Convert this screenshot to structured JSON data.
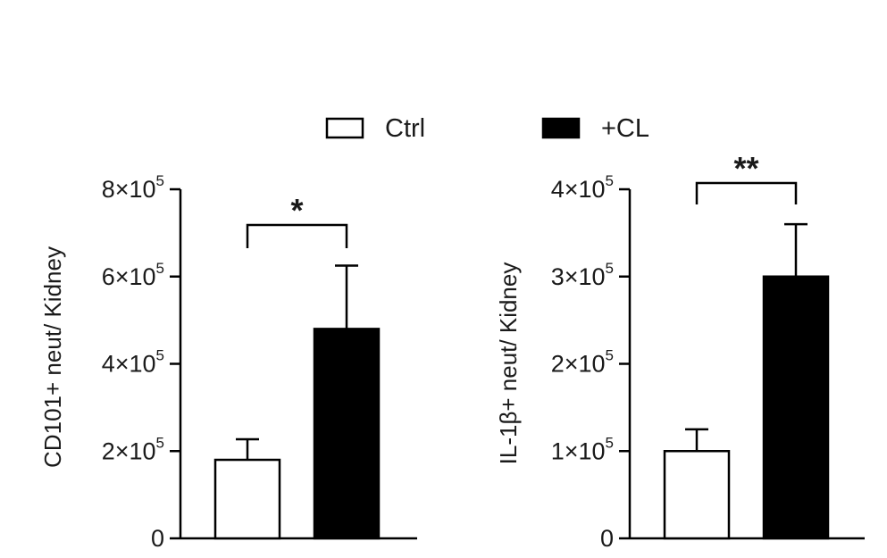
{
  "legend": {
    "items": [
      {
        "label": "Ctrl",
        "fill": "#ffffff"
      },
      {
        "label": "+CL",
        "fill": "#000000"
      }
    ]
  },
  "chart_data": [
    {
      "type": "bar",
      "categories": [
        "Ctrl",
        "+CL"
      ],
      "values": [
        180000,
        480000
      ],
      "errors": [
        47000,
        145000
      ],
      "ylabel": "CD101+ neut/ Kidney",
      "ylim": [
        0,
        800000
      ],
      "yticks": [
        {
          "value": 0,
          "base": "0",
          "exp": ""
        },
        {
          "value": 200000,
          "base": "2×10",
          "exp": "5"
        },
        {
          "value": 400000,
          "base": "4×10",
          "exp": "5"
        },
        {
          "value": 600000,
          "base": "6×10",
          "exp": "5"
        },
        {
          "value": 800000,
          "base": "8×10",
          "exp": "5"
        }
      ],
      "significance": "*",
      "colors": [
        "#ffffff",
        "#000000"
      ]
    },
    {
      "type": "bar",
      "categories": [
        "Ctrl",
        "+CL"
      ],
      "values": [
        100000,
        300000
      ],
      "errors": [
        25000,
        60000
      ],
      "ylabel": "IL-1β+ neut/ Kidney",
      "ylim": [
        0,
        400000
      ],
      "yticks": [
        {
          "value": 0,
          "base": "0",
          "exp": ""
        },
        {
          "value": 100000,
          "base": "1×10",
          "exp": "5"
        },
        {
          "value": 200000,
          "base": "2×10",
          "exp": "5"
        },
        {
          "value": 300000,
          "base": "3×10",
          "exp": "5"
        },
        {
          "value": 400000,
          "base": "4×10",
          "exp": "5"
        }
      ],
      "significance": "**",
      "colors": [
        "#ffffff",
        "#000000"
      ]
    }
  ]
}
